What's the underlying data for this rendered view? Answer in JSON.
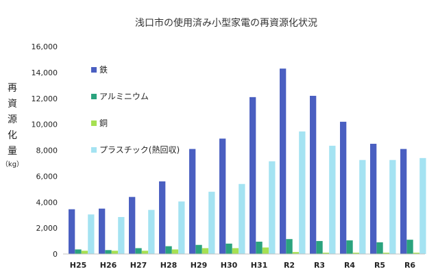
{
  "chart_data": {
    "type": "bar",
    "title": "浅口市の使用済み小型家電の再資源化状況",
    "ylabel": "再資源化量",
    "ylabel_unit": "（kg）",
    "xlabel": "",
    "categories": [
      "H25",
      "H26",
      "H27",
      "H28",
      "H29",
      "H30",
      "H31",
      "R2",
      "R3",
      "R4",
      "R5",
      "R6"
    ],
    "ylim": [
      0,
      16000
    ],
    "yticks": [
      0,
      2000,
      4000,
      6000,
      8000,
      10000,
      12000,
      14000,
      16000
    ],
    "ytick_labels": [
      "0",
      "2,000",
      "4,000",
      "6,000",
      "8,000",
      "10,000",
      "12,000",
      "14,000",
      "16,000"
    ],
    "grid": false,
    "legend_position": "upper-left-inside",
    "series": [
      {
        "name": "鉄",
        "color": "#4a5fc1",
        "values": [
          3450,
          3500,
          4400,
          5600,
          8100,
          8900,
          12100,
          14300,
          12200,
          10200,
          8500,
          8100
        ]
      },
      {
        "name": "アルミニウム",
        "color": "#2ba37e",
        "values": [
          350,
          300,
          450,
          600,
          700,
          800,
          950,
          1150,
          1000,
          1050,
          900,
          1100
        ]
      },
      {
        "name": "銅",
        "color": "#a6e052",
        "values": [
          250,
          250,
          250,
          350,
          450,
          450,
          500,
          150,
          100,
          100,
          100,
          100
        ]
      },
      {
        "name": "プラスチック(熱回収)",
        "color": "#a4e3f2",
        "values": [
          3050,
          2850,
          3400,
          4050,
          4800,
          5400,
          7150,
          9450,
          8350,
          7250,
          7250,
          7400
        ]
      }
    ]
  }
}
